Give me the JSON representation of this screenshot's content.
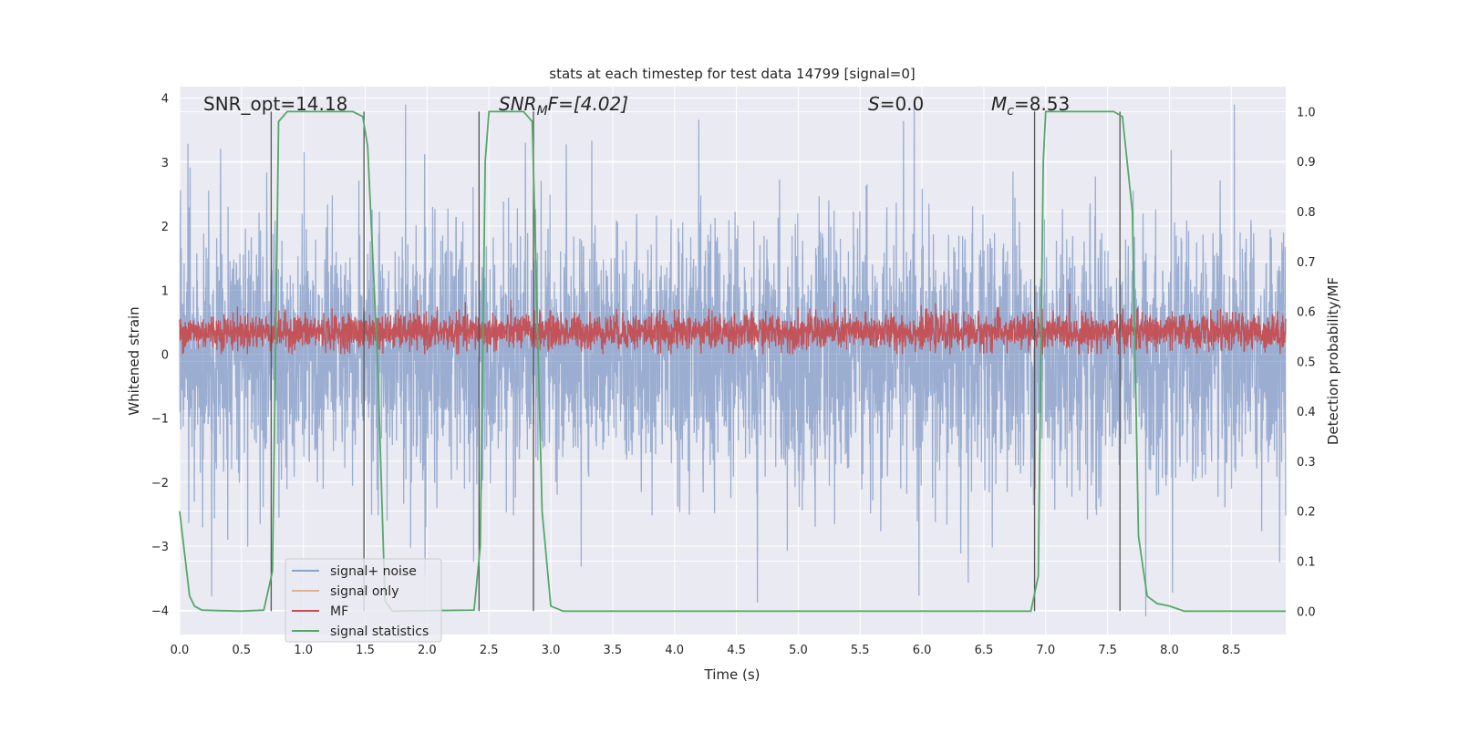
{
  "chart_data": {
    "type": "line",
    "title": "stats at each timestep for test data 14799 [signal=0]",
    "xlabel": "Time (s)",
    "ylabel": "Whitened strain",
    "ylabel_right": "Detection probability/MF",
    "xlim": [
      0,
      8.94
    ],
    "ylim": [
      -4.38,
      4.18
    ],
    "ylim_right": [
      -0.047,
      1.05
    ],
    "grid": true,
    "x_ticks": [
      "0.0",
      "0.5",
      "1.0",
      "1.5",
      "2.0",
      "2.5",
      "3.0",
      "3.5",
      "4.0",
      "4.5",
      "5.0",
      "5.5",
      "6.0",
      "6.5",
      "7.0",
      "7.5",
      "8.0",
      "8.5"
    ],
    "y_ticks": [
      "−4",
      "−3",
      "−2",
      "−1",
      "0",
      "1",
      "2",
      "3",
      "4"
    ],
    "y_ticks_right": [
      "0.0",
      "0.1",
      "0.2",
      "0.3",
      "0.4",
      "0.5",
      "0.6",
      "0.7",
      "0.8",
      "0.9",
      "1.0"
    ],
    "annotations": {
      "snr_opt": "SNR_opt=14.18",
      "snr_mf_main": "SNR",
      "snr_mf_sub": "M",
      "snr_mf_rest": "F=[4.02]",
      "s_main": "S",
      "s_rest": "=0.0",
      "mc_main": "M",
      "mc_sub": "c",
      "mc_rest": "=8.53"
    },
    "legend_placement": "lower-left",
    "series": [
      {
        "name": "signal+ noise",
        "color": "#4c72b0",
        "axis": "left",
        "kind": "noise",
        "samples": 4000,
        "mean": 0.0,
        "std": 0.95
      },
      {
        "name": "signal only",
        "color": "#dd8452",
        "axis": "left",
        "kind": "none"
      },
      {
        "name": "MF",
        "color": "#c44e52",
        "axis": "left",
        "kind": "noise",
        "samples": 4000,
        "mean": 0.35,
        "std": 0.14
      },
      {
        "name": "signal statistics",
        "color": "#55a868",
        "axis": "right",
        "x": [
          0,
          0.08,
          0.12,
          0.18,
          0.3,
          0.5,
          0.68,
          0.75,
          0.78,
          0.8,
          0.87,
          1.4,
          1.48,
          1.52,
          1.6,
          1.66,
          1.72,
          2.38,
          2.43,
          2.47,
          2.5,
          2.78,
          2.85,
          2.93,
          3.0,
          3.1,
          6.88,
          6.94,
          6.98,
          7.0,
          7.55,
          7.62,
          7.7,
          7.75,
          7.82,
          7.9,
          8.0,
          8.12,
          8.94
        ],
        "y": [
          0.2,
          0.03,
          0.01,
          0.002,
          0.001,
          0.0,
          0.002,
          0.08,
          0.6,
          0.98,
          1.0,
          1.0,
          0.99,
          0.93,
          0.5,
          0.02,
          0.0,
          0.002,
          0.13,
          0.9,
          1.0,
          1.0,
          0.98,
          0.2,
          0.01,
          0.0,
          0.0,
          0.07,
          0.9,
          1.0,
          1.0,
          0.99,
          0.8,
          0.15,
          0.03,
          0.015,
          0.01,
          0.0,
          0.0
        ]
      }
    ],
    "event_lines_x": [
      0.74,
      1.49,
      2.42,
      2.86,
      6.91,
      7.6
    ]
  }
}
